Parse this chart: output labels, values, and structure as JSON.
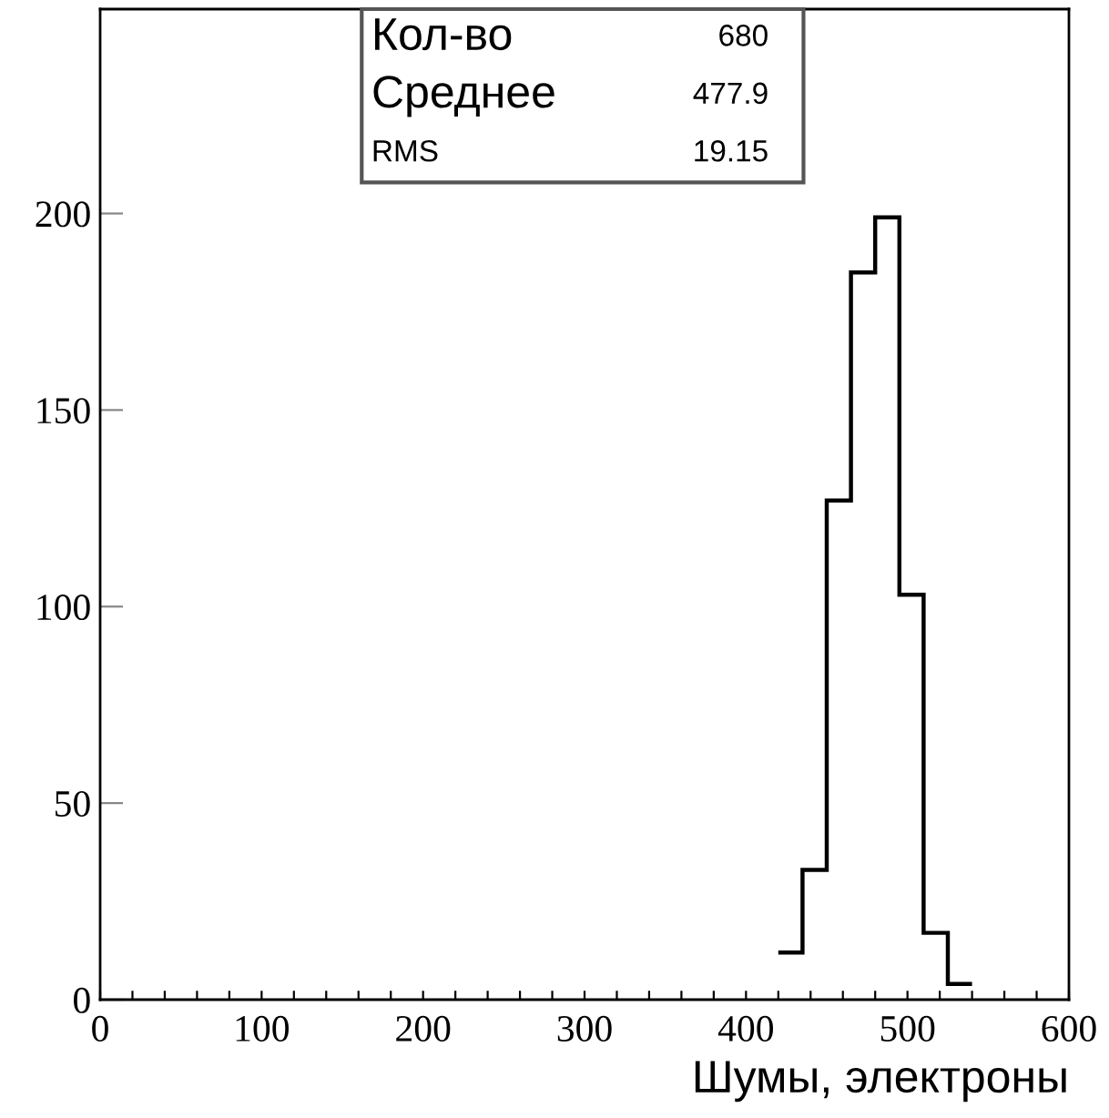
{
  "chart_data": {
    "type": "histogram",
    "xlabel": "Шумы, электроны",
    "bins": [
      420,
      435,
      450,
      465,
      480,
      495,
      510,
      525,
      540
    ],
    "values": [
      12,
      33,
      127,
      185,
      199,
      103,
      17,
      4
    ],
    "color": "#000000",
    "xlim": [
      0,
      600
    ],
    "xticks": [
      0,
      {
        "value": 20,
        "label": null
      },
      {
        "value": 40,
        "label": null
      },
      {
        "value": 60,
        "label": null
      },
      {
        "value": 80,
        "label": null
      },
      100,
      {
        "value": 120,
        "label": null
      },
      {
        "value": 140,
        "label": null
      },
      {
        "value": 160,
        "label": null
      },
      {
        "value": 180,
        "label": null
      },
      200,
      {
        "value": 220,
        "label": null
      },
      {
        "value": 240,
        "label": null
      },
      {
        "value": 260,
        "label": null
      },
      {
        "value": 280,
        "label": null
      },
      300,
      {
        "value": 320,
        "label": null
      },
      {
        "value": 340,
        "label": null
      },
      {
        "value": 360,
        "label": null
      },
      {
        "value": 380,
        "label": null
      },
      400,
      {
        "value": 420,
        "label": null
      },
      {
        "value": 440,
        "label": null
      },
      {
        "value": 460,
        "label": null
      },
      {
        "value": 480,
        "label": null
      },
      500,
      {
        "value": 520,
        "label": null
      },
      {
        "value": 540,
        "label": null
      },
      {
        "value": 560,
        "label": null
      },
      {
        "value": 580,
        "label": null
      },
      600
    ],
    "ylim": [
      0,
      252
    ],
    "yticks": [
      0,
      50,
      100,
      150,
      200
    ],
    "grid": false,
    "annotations": [
      "Кол-во",
      "680",
      "Среднее",
      "477.9",
      "RMS",
      "19.15"
    ]
  }
}
